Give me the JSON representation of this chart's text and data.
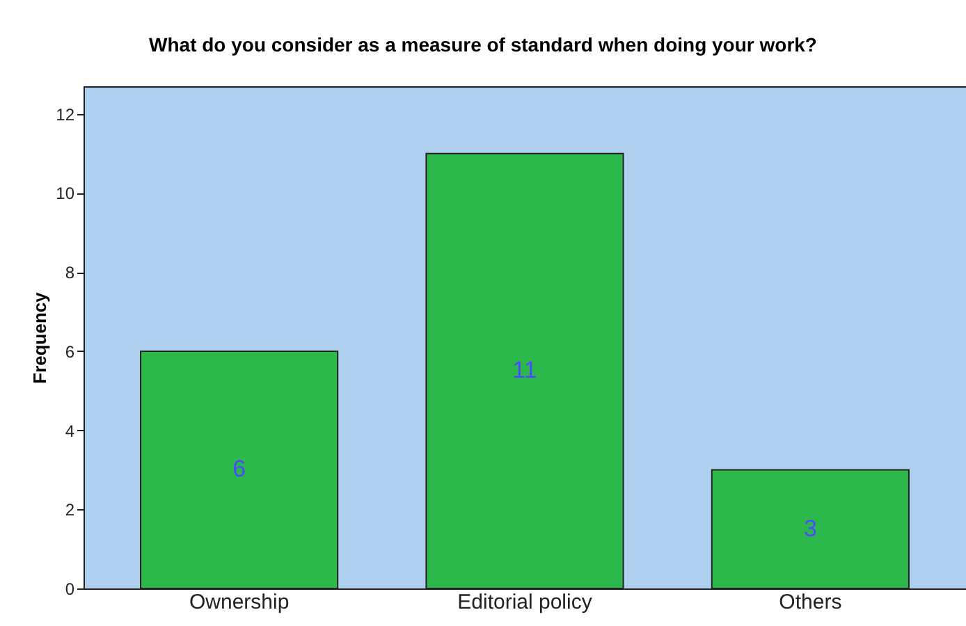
{
  "chart_data": {
    "type": "bar",
    "title": "What do you consider as a measure of standard when doing your work?",
    "ylabel": "Frequency",
    "categories": [
      "Ownership",
      "Editorial policy",
      "Others"
    ],
    "values": [
      6,
      11,
      3
    ],
    "color": "#2db84b",
    "ylim": [
      0,
      12.7
    ],
    "yticks": [
      0,
      2,
      4,
      6,
      8,
      10,
      12
    ],
    "data_labels": true,
    "grid": false
  }
}
